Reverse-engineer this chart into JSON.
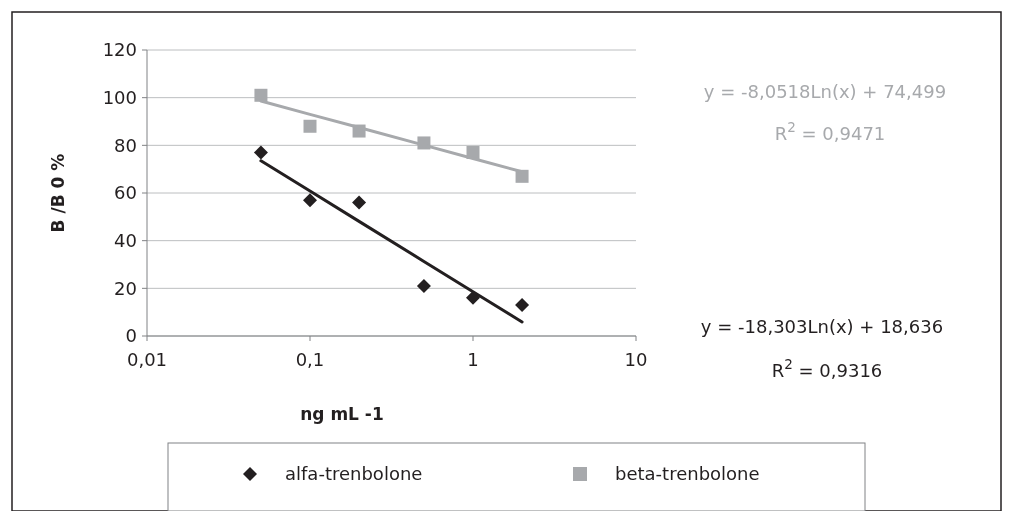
{
  "chart_data": {
    "type": "scatter",
    "xlabel": "ng mL -1",
    "ylabel": "B /B 0 %",
    "log": "x",
    "grid": "y",
    "legend": "bottom",
    "xlim": [
      0.01,
      10
    ],
    "xticks": [
      {
        "value": 0.01,
        "label": "0,01"
      },
      {
        "value": 0.1,
        "label": "0,1"
      },
      1,
      10
    ],
    "ylim": [
      0,
      120
    ],
    "yticks": [
      0,
      20,
      40,
      60,
      80,
      100,
      120
    ],
    "series": [
      {
        "name": "alfa-trenbolone",
        "marker": "diamond",
        "color": "#231f20",
        "x": [
          0.05,
          0.1,
          0.2,
          0.5,
          1,
          2
        ],
        "values": [
          77,
          57,
          56,
          21,
          16,
          13
        ]
      },
      {
        "name": "beta-trenbolone",
        "marker": "square",
        "color": "#a7a9ac",
        "x": [
          0.05,
          0.1,
          0.2,
          0.5,
          1,
          2
        ],
        "values": [
          101,
          88,
          86,
          81,
          77,
          67
        ]
      },
      {
        "type": "line",
        "marker": "none",
        "color": "#231f20",
        "x": [
          0.05,
          0.1,
          0.2,
          0.5,
          1,
          2
        ],
        "values": [
          73.5,
          60.8,
          48.1,
          31.3,
          18.6,
          5.9
        ]
      },
      {
        "type": "line",
        "marker": "none",
        "color": "#a7a9ac",
        "x": [
          0.05,
          0.1,
          0.2,
          0.5,
          1,
          2
        ],
        "values": [
          98.6,
          93.0,
          87.5,
          80.1,
          74.5,
          68.9
        ]
      }
    ],
    "annotations": [
      "y = -8,0518Ln(x) + 74,499",
      "R$^{2}$ = 0,9471",
      "y = -18,303Ln(x) + 18,636",
      "R$^{2}$ = 0,9316"
    ]
  }
}
